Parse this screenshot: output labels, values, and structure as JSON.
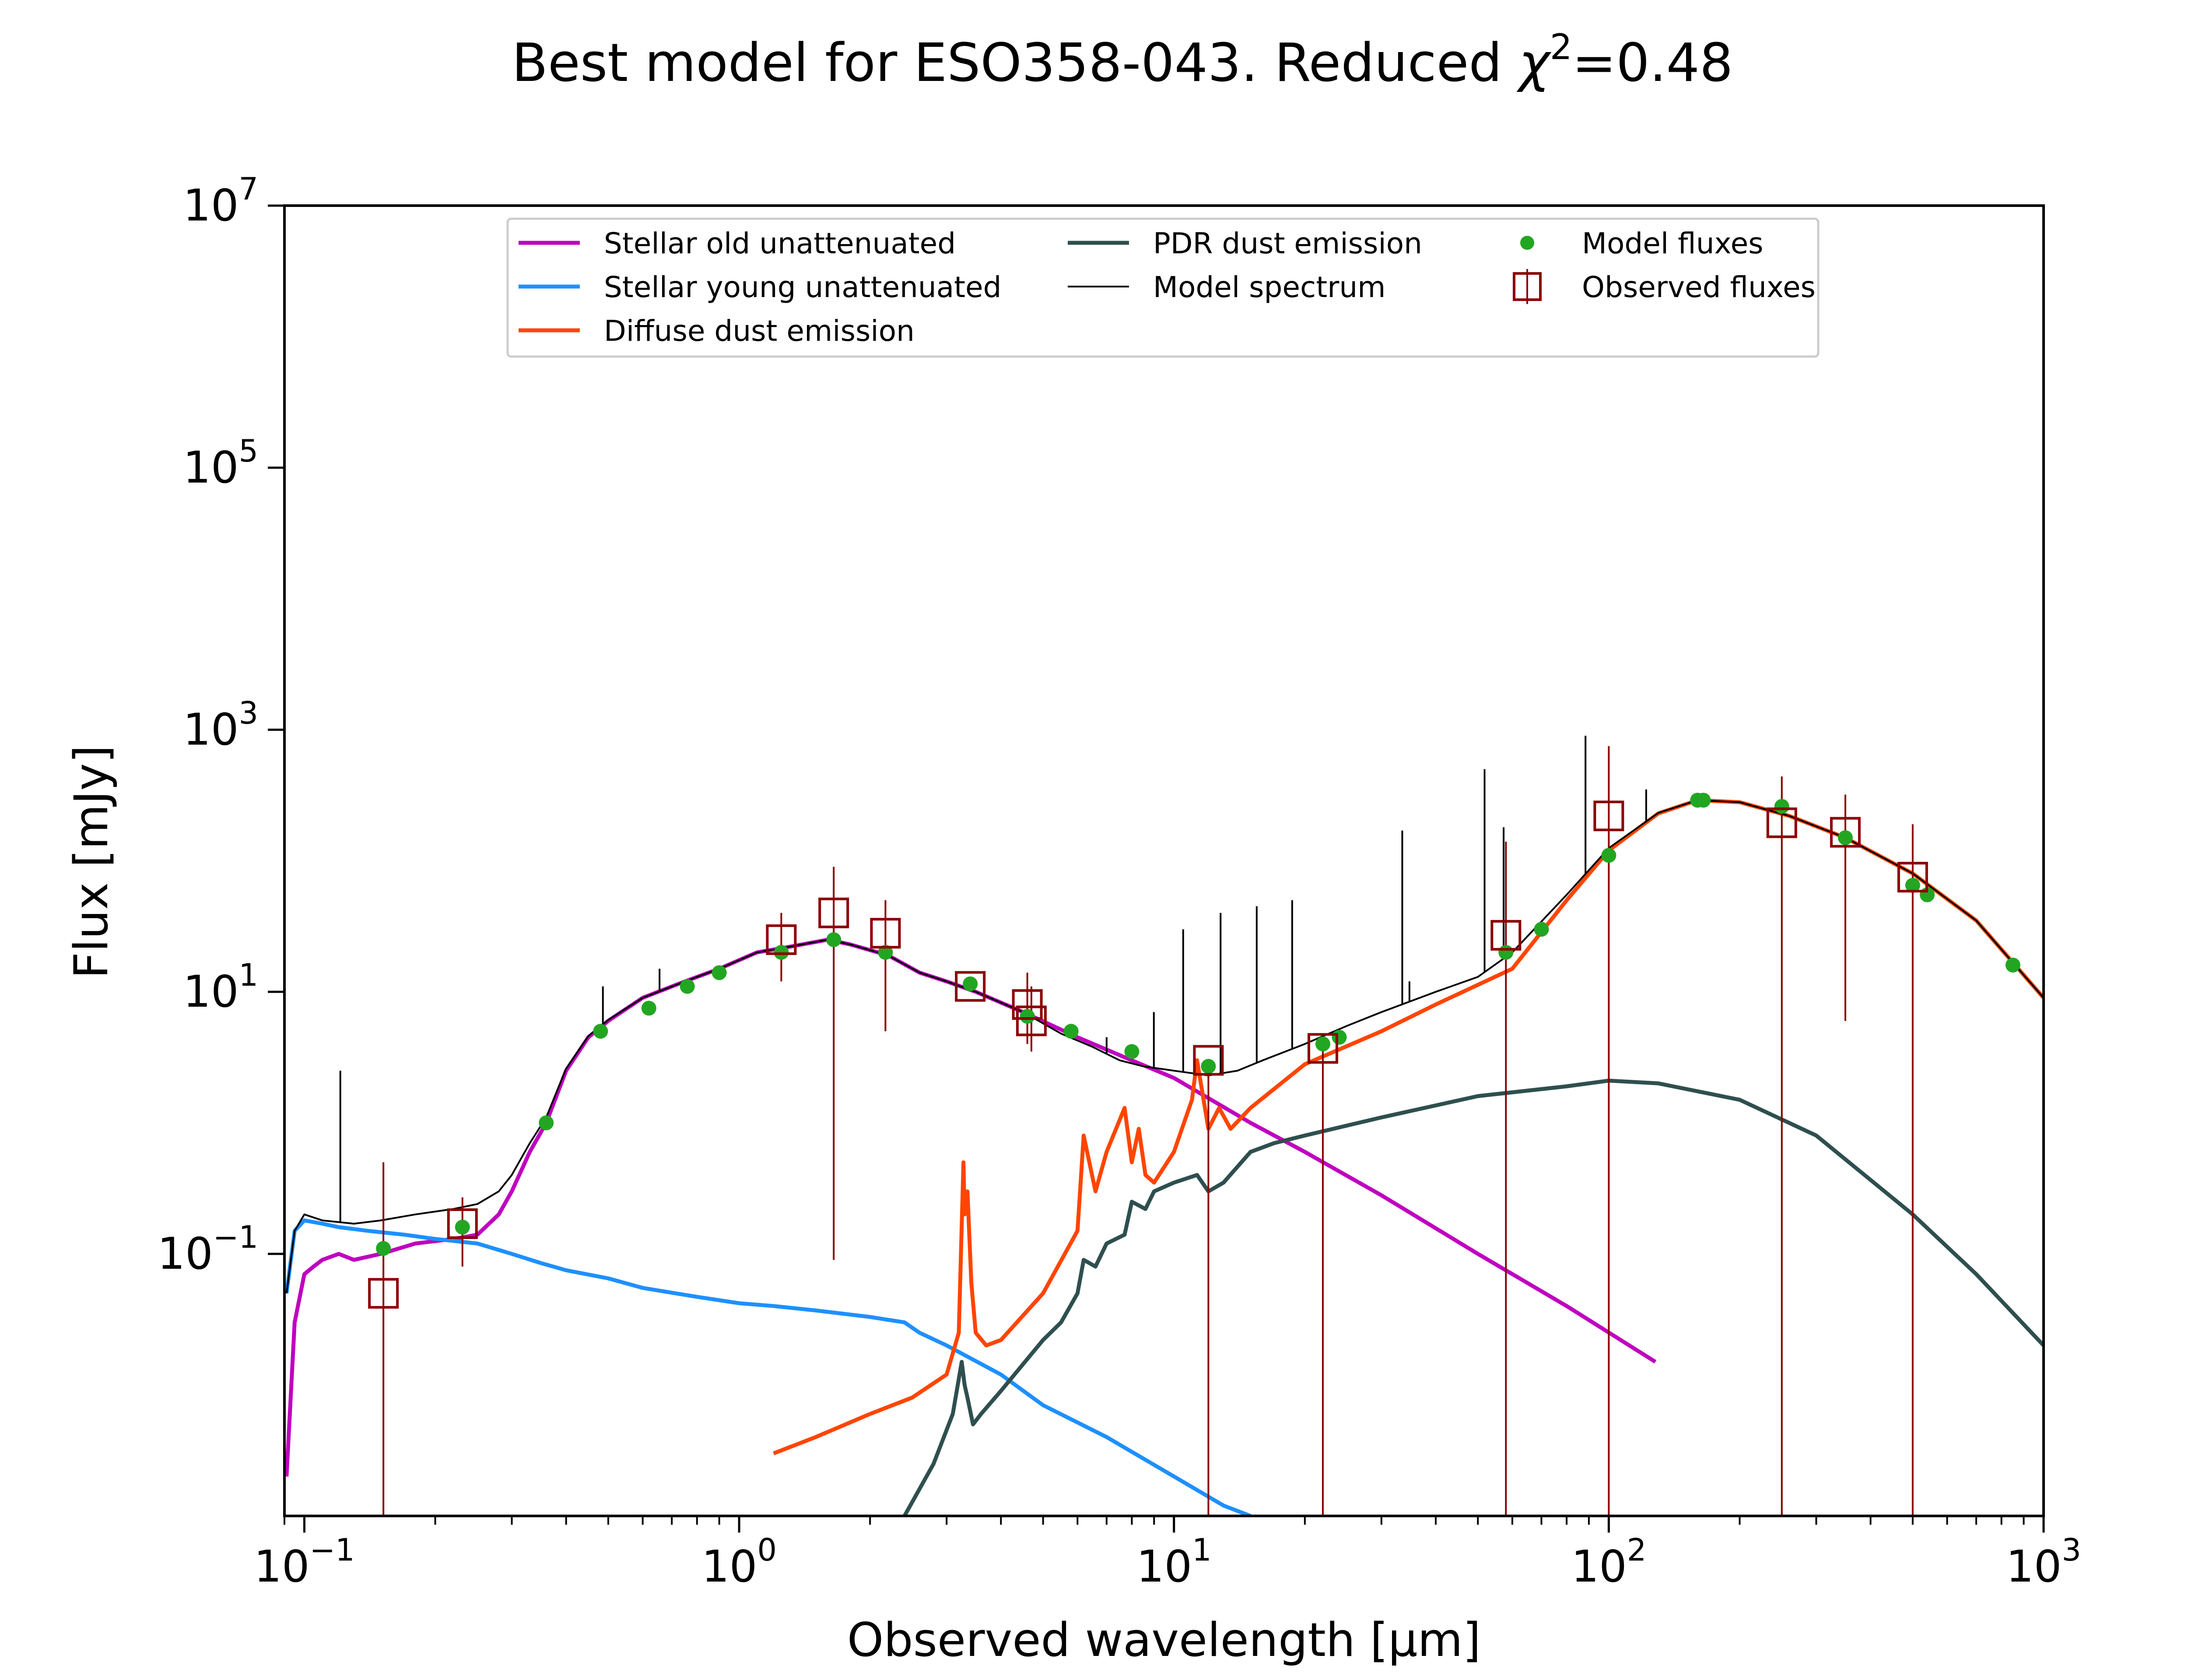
{
  "chart_data": {
    "type": "line",
    "title": "Best model for ESO358-043. Reduced χ²=0.48",
    "title_parts": {
      "main": "Best model for ESO358-043. Reduced ",
      "chi": "χ",
      "sup": "2",
      "tail": "=0.48"
    },
    "xlabel": "Observed wavelength [μm]",
    "ylabel": "Flux [mJy]",
    "x_scale": "log",
    "y_scale": "log",
    "xlim": [
      0.09,
      1000
    ],
    "ylim": [
      0.001,
      10000000
    ],
    "x_ticks": [
      {
        "value": 0.1,
        "base": "10",
        "exp": "−1"
      },
      {
        "value": 1,
        "base": "10",
        "exp": "0"
      },
      {
        "value": 10,
        "base": "10",
        "exp": "1"
      },
      {
        "value": 100,
        "base": "10",
        "exp": "2"
      },
      {
        "value": 1000,
        "base": "10",
        "exp": "3"
      }
    ],
    "y_ticks": [
      {
        "value": 0.1,
        "base": "10",
        "exp": "−1"
      },
      {
        "value": 10,
        "base": "10",
        "exp": "1"
      },
      {
        "value": 1000,
        "base": "10",
        "exp": "3"
      },
      {
        "value": 100000,
        "base": "10",
        "exp": "5"
      },
      {
        "value": 10000000,
        "base": "10",
        "exp": "7"
      }
    ],
    "grid": false,
    "legend_position": "top-center",
    "legend": [
      {
        "label": "Stellar old unattenuated",
        "color": "#bf00bf",
        "style": "line"
      },
      {
        "label": "Stellar young unattenuated",
        "color": "#1e90ff",
        "style": "line"
      },
      {
        "label": "Diffuse dust emission",
        "color": "#ff4500",
        "style": "line"
      },
      {
        "label": "PDR dust emission",
        "color": "#2f4f4f",
        "style": "line"
      },
      {
        "label": "Model spectrum",
        "color": "#000000",
        "style": "thin-line"
      },
      {
        "label": "Model fluxes",
        "color": "#22a622",
        "style": "dot"
      },
      {
        "label": "Observed fluxes",
        "color": "#8b0000",
        "style": "open-square"
      }
    ],
    "series": [
      {
        "name": "Stellar old unattenuated",
        "color": "#bf00bf",
        "x": [
          0.091,
          0.095,
          0.1,
          0.105,
          0.11,
          0.12,
          0.13,
          0.15,
          0.18,
          0.22,
          0.25,
          0.28,
          0.3,
          0.33,
          0.36,
          0.4,
          0.45,
          0.5,
          0.6,
          0.75,
          0.9,
          1.1,
          1.3,
          1.6,
          1.8,
          2.2,
          2.6,
          3.0,
          3.5,
          4.5,
          6.0,
          8.0,
          10.0,
          15.0,
          20.0,
          30.0,
          50.0,
          80.0,
          128.0
        ],
        "y": [
          0.002,
          0.03,
          0.07,
          0.08,
          0.09,
          0.1,
          0.09,
          0.1,
          0.12,
          0.13,
          0.14,
          0.2,
          0.3,
          0.6,
          1.0,
          2.5,
          4.5,
          6.0,
          9.0,
          12.0,
          15.0,
          20.0,
          22.0,
          25.0,
          23.0,
          19.0,
          14.0,
          12.0,
          10.0,
          7.0,
          4.5,
          3.0,
          2.2,
          1.0,
          0.6,
          0.28,
          0.1,
          0.04,
          0.015
        ]
      },
      {
        "name": "Stellar young unattenuated",
        "color": "#1e90ff",
        "x": [
          0.091,
          0.095,
          0.1,
          0.11,
          0.12,
          0.14,
          0.17,
          0.2,
          0.25,
          0.3,
          0.35,
          0.4,
          0.5,
          0.6,
          0.8,
          1.0,
          1.2,
          1.5,
          2.0,
          2.4,
          2.6,
          3.0,
          4.0,
          5.0,
          7.0,
          10.0,
          13.0,
          15.0
        ],
        "y": [
          0.05,
          0.15,
          0.18,
          0.17,
          0.16,
          0.15,
          0.14,
          0.13,
          0.12,
          0.1,
          0.085,
          0.075,
          0.065,
          0.055,
          0.047,
          0.042,
          0.04,
          0.037,
          0.033,
          0.03,
          0.025,
          0.02,
          0.012,
          0.007,
          0.004,
          0.002,
          0.0012,
          0.001
        ]
      },
      {
        "name": "Diffuse dust emission",
        "color": "#ff4500",
        "x": [
          1.2,
          1.5,
          2.0,
          2.5,
          3.0,
          3.2,
          3.28,
          3.3,
          3.35,
          3.42,
          3.5,
          3.7,
          4.0,
          5.0,
          6.0,
          6.2,
          6.6,
          7.0,
          7.7,
          8.0,
          8.3,
          8.6,
          9.0,
          10.0,
          11.0,
          11.3,
          12.0,
          12.7,
          13.5,
          15.0,
          20.0,
          30.0,
          40.0,
          60.0,
          80.0,
          100.0,
          130.0,
          160.0,
          200.0,
          260.0,
          350.0,
          500.0,
          700.0,
          1000.0
        ],
        "y": [
          0.003,
          0.004,
          0.006,
          0.008,
          0.012,
          0.025,
          0.5,
          0.2,
          0.3,
          0.06,
          0.025,
          0.02,
          0.022,
          0.05,
          0.15,
          0.8,
          0.3,
          0.6,
          1.3,
          0.5,
          0.9,
          0.4,
          0.35,
          0.6,
          1.5,
          3.0,
          0.9,
          1.3,
          0.9,
          1.3,
          2.8,
          5.0,
          8.0,
          15.0,
          50.0,
          120.0,
          230.0,
          290.0,
          280.0,
          220.0,
          150.0,
          80.0,
          35.0,
          9.0
        ]
      },
      {
        "name": "PDR dust emission",
        "color": "#2f4f4f",
        "x": [
          2.4,
          2.8,
          3.1,
          3.25,
          3.3,
          3.35,
          3.45,
          3.6,
          4.0,
          5.0,
          5.5,
          6.0,
          6.2,
          6.6,
          7.0,
          7.7,
          8.0,
          8.6,
          9.0,
          10.0,
          11.3,
          12.0,
          13.0,
          15.0,
          17.0,
          20.0,
          30.0,
          50.0,
          80.0,
          100.0,
          130.0,
          200.0,
          300.0,
          500.0,
          700.0,
          1000.0
        ],
        "y": [
          0.001,
          0.0025,
          0.006,
          0.015,
          0.01,
          0.008,
          0.005,
          0.006,
          0.009,
          0.022,
          0.03,
          0.05,
          0.09,
          0.08,
          0.12,
          0.14,
          0.25,
          0.22,
          0.3,
          0.35,
          0.4,
          0.3,
          0.35,
          0.6,
          0.7,
          0.8,
          1.1,
          1.6,
          1.9,
          2.1,
          2.0,
          1.5,
          0.8,
          0.2,
          0.07,
          0.02
        ]
      },
      {
        "name": "Model spectrum",
        "color": "#000000",
        "x": [
          0.091,
          0.095,
          0.1,
          0.11,
          0.13,
          0.15,
          0.18,
          0.22,
          0.25,
          0.28,
          0.3,
          0.33,
          0.36,
          0.4,
          0.45,
          0.5,
          0.6,
          0.75,
          0.9,
          1.1,
          1.3,
          1.6,
          1.8,
          2.2,
          2.6,
          3.0,
          3.5,
          4.5,
          5.5,
          6.5,
          7.5,
          8.5,
          10.0,
          12.0,
          14.0,
          16.0,
          20.0,
          25.0,
          30.0,
          40.0,
          50.0,
          60.0,
          80.0,
          100.0,
          130.0,
          160.0,
          200.0,
          260.0,
          350.0,
          500.0,
          700.0,
          1000.0
        ],
        "y": [
          0.05,
          0.15,
          0.2,
          0.18,
          0.17,
          0.18,
          0.2,
          0.22,
          0.24,
          0.3,
          0.4,
          0.7,
          1.1,
          2.6,
          4.6,
          6.1,
          9.0,
          12.0,
          15.0,
          20.0,
          22.0,
          25.0,
          23.0,
          19.0,
          14.0,
          12.0,
          10.0,
          7.0,
          4.8,
          3.8,
          3.0,
          2.7,
          2.5,
          2.3,
          2.5,
          3.0,
          4.0,
          5.5,
          7.0,
          10.0,
          13.0,
          20.0,
          55.0,
          125.0,
          232.0,
          290.0,
          280.0,
          220.0,
          150.0,
          80.0,
          35.0,
          9.0
        ]
      }
    ],
    "spectral_lines": [
      {
        "x": 0.121,
        "y_top": 2.5
      },
      {
        "x": 0.486,
        "y_top": 11.0
      },
      {
        "x": 0.656,
        "y_top": 15.0
      },
      {
        "x": 7.0,
        "y_top": 4.5
      },
      {
        "x": 8.99,
        "y_top": 7.0
      },
      {
        "x": 10.5,
        "y_top": 30.0
      },
      {
        "x": 12.8,
        "y_top": 40.0
      },
      {
        "x": 15.5,
        "y_top": 45.0
      },
      {
        "x": 18.7,
        "y_top": 50.0
      },
      {
        "x": 33.5,
        "y_top": 170.0
      },
      {
        "x": 34.8,
        "y_top": 12.0
      },
      {
        "x": 51.8,
        "y_top": 500.0
      },
      {
        "x": 57.3,
        "y_top": 180.0
      },
      {
        "x": 88.4,
        "y_top": 900.0
      },
      {
        "x": 121.9,
        "y_top": 350.0
      }
    ],
    "model_fluxes": {
      "x": [
        0.152,
        0.231,
        0.36,
        0.48,
        0.62,
        0.76,
        0.9,
        1.25,
        1.65,
        2.17,
        3.4,
        4.6,
        5.8,
        8.0,
        12.0,
        22.0,
        24.0,
        58.0,
        70.0,
        100.0,
        160.0,
        165.0,
        250.0,
        350.0,
        500.0,
        540.0,
        850.0
      ],
      "y": [
        0.11,
        0.16,
        1.0,
        5.0,
        7.5,
        11.0,
        14.0,
        20.0,
        25.0,
        20.0,
        11.5,
        6.5,
        5.0,
        3.5,
        2.7,
        4.0,
        4.5,
        20.0,
        30.0,
        110.0,
        290.0,
        290.0,
        260.0,
        150.0,
        65.0,
        55.0,
        16.0
      ]
    },
    "observed_fluxes": {
      "x": [
        0.152,
        0.231,
        1.25,
        1.65,
        2.17,
        3.4,
        4.6,
        4.7,
        12.0,
        22.0,
        58.0,
        100.0,
        250.0,
        350.0,
        500.0
      ],
      "y": [
        0.05,
        0.17,
        25.0,
        40.0,
        28.0,
        11.0,
        8.0,
        6.0,
        3.0,
        3.7,
        27.0,
        220.0,
        195.0,
        165.0,
        75.0
      ],
      "err_low": [
        0.001,
        0.08,
        12.0,
        0.09,
        5.0,
        11.0,
        4.0,
        3.5,
        0.001,
        0.001,
        0.001,
        0.001,
        0.001,
        6.0,
        0.001
      ],
      "err_high": [
        0.5,
        0.27,
        40.0,
        90.0,
        50.0,
        11.0,
        14.0,
        11.0,
        3.0,
        3.7,
        140.0,
        750.0,
        440.0,
        320.0,
        190.0
      ]
    }
  }
}
